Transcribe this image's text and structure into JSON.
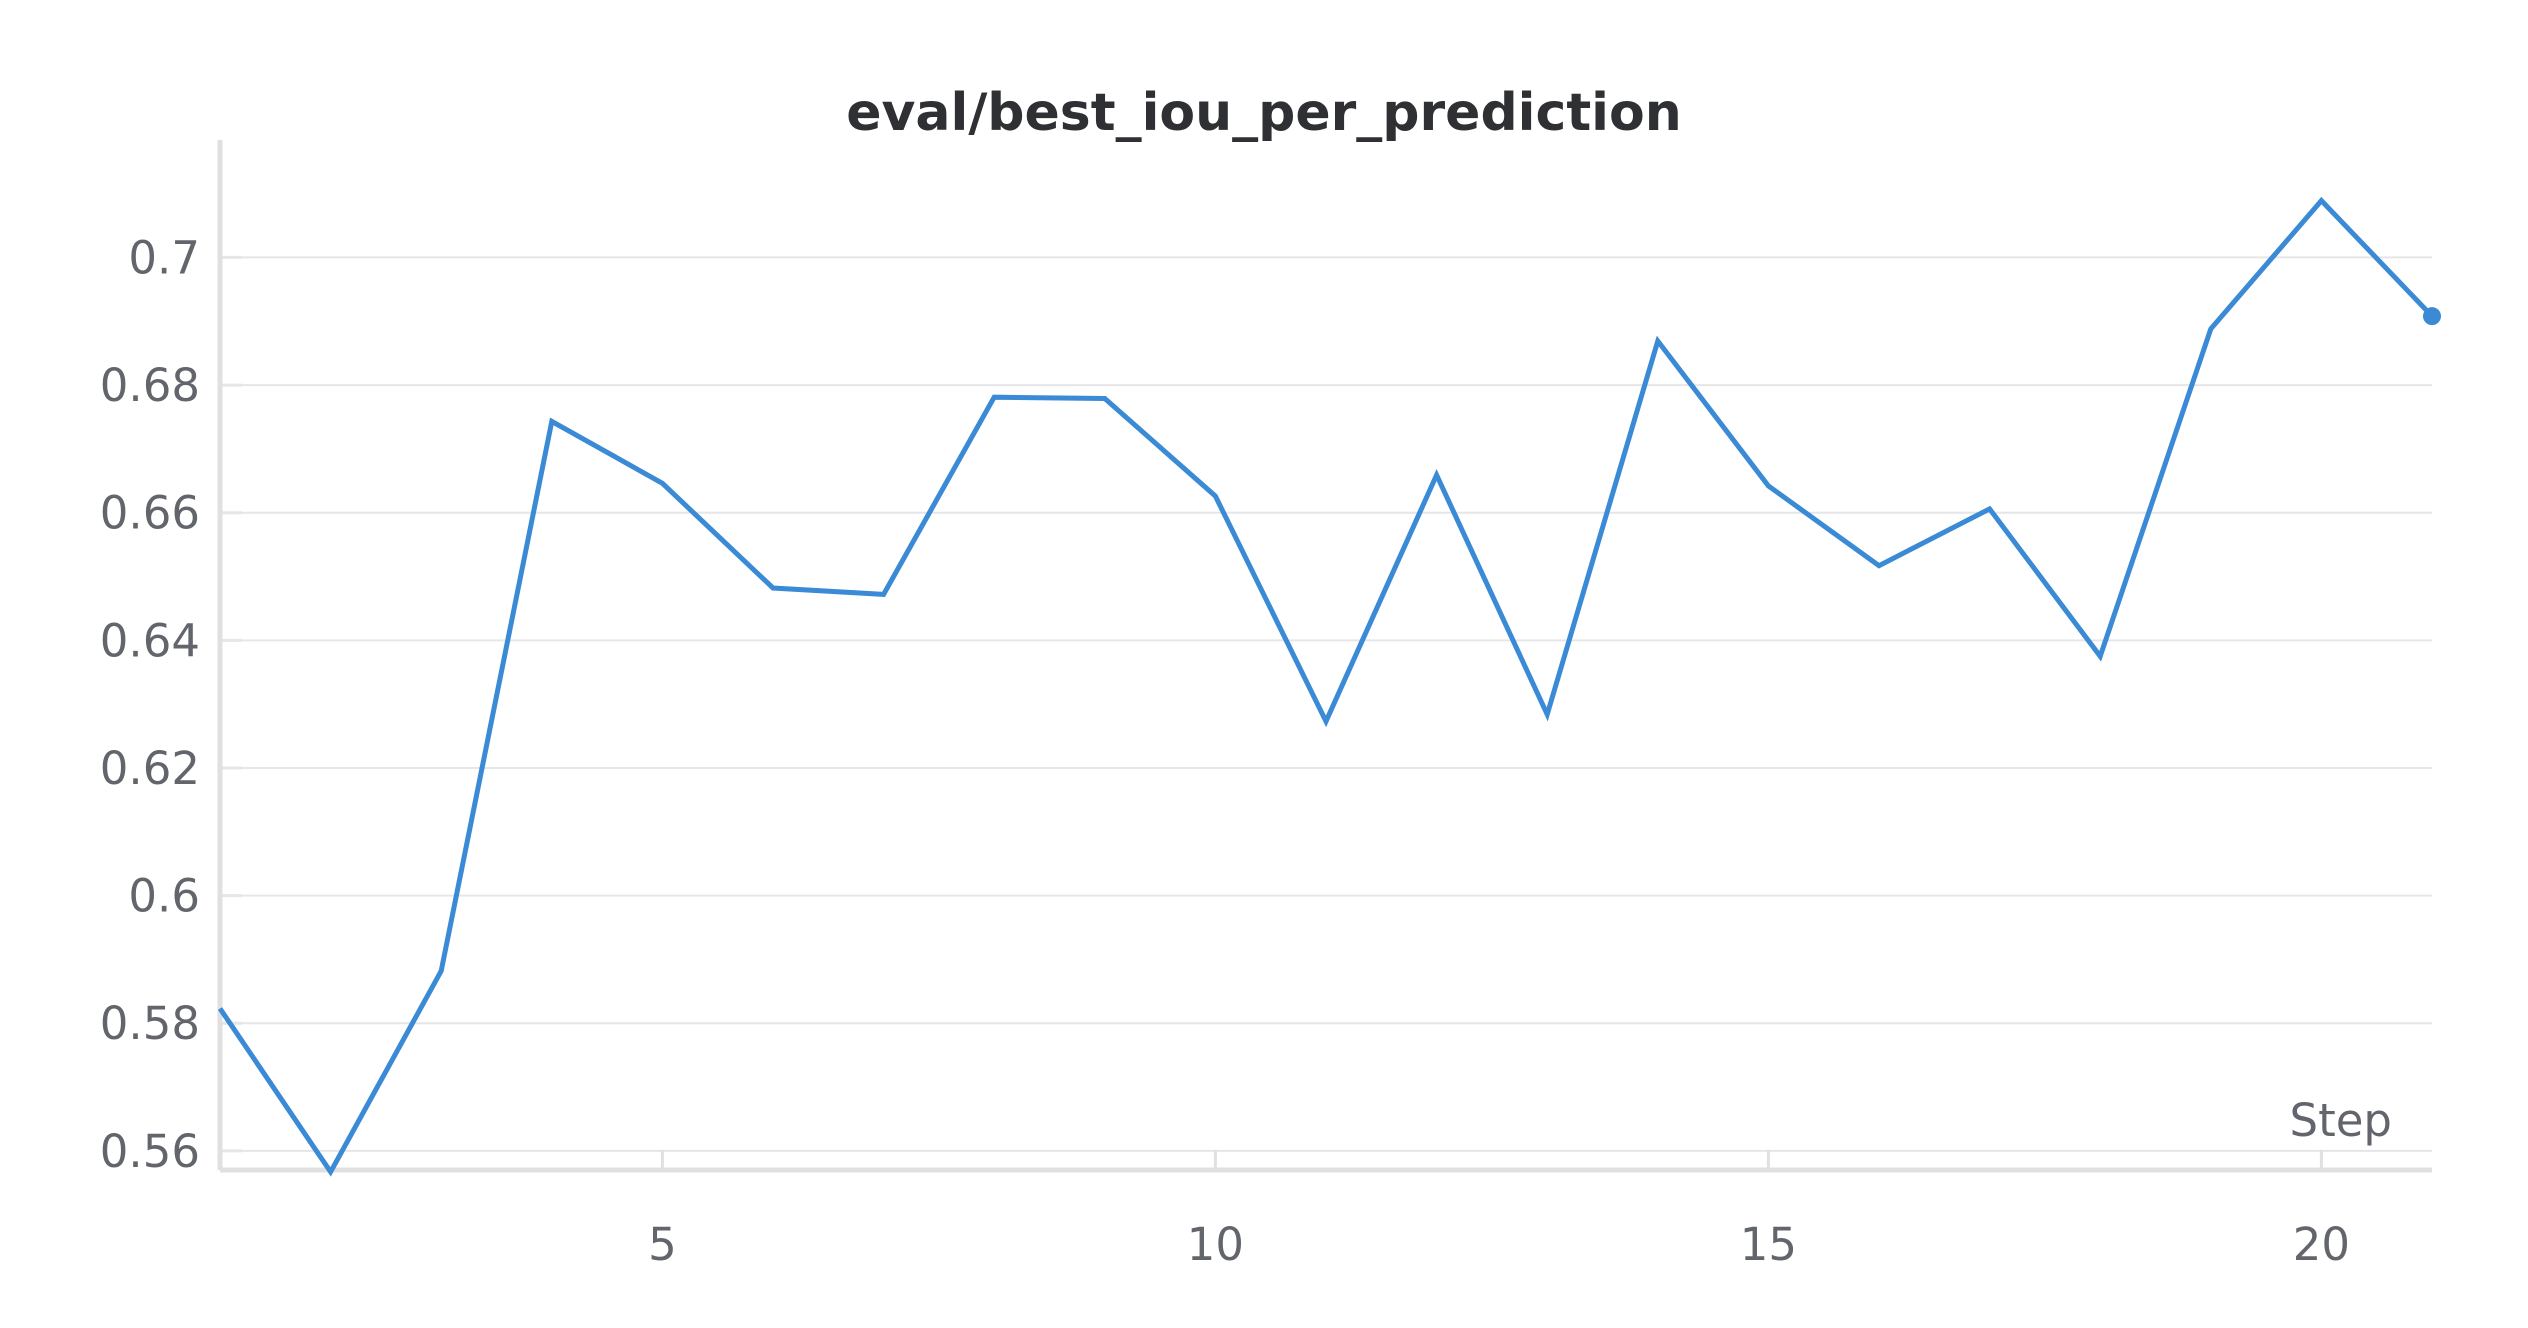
{
  "chart_data": {
    "type": "line",
    "title": "eval/best_iou_per_prediction",
    "xlabel": "Step",
    "ylabel": "",
    "xlim": [
      1,
      21
    ],
    "ylim": [
      0.557,
      0.709
    ],
    "x_ticks": [
      5,
      10,
      15,
      20
    ],
    "x_tick_labels": [
      "5",
      "10",
      "15",
      "20"
    ],
    "y_ticks": [
      0.56,
      0.58,
      0.6,
      0.62,
      0.64,
      0.66,
      0.68,
      0.7
    ],
    "y_tick_labels": [
      "0.56",
      "0.58",
      "0.6",
      "0.62",
      "0.64",
      "0.66",
      "0.68",
      "0.7"
    ],
    "grid": true,
    "legend": "none",
    "colors": {
      "line": "#3a8ad6",
      "grid": "#e6e6e8",
      "axis": "#e0e0e2",
      "text": "#62656b",
      "title": "#2f3033"
    },
    "series": [
      {
        "x": [
          1,
          2,
          3,
          4,
          5,
          6,
          7,
          8,
          9,
          10,
          11,
          12,
          13,
          14,
          15,
          16,
          17,
          18,
          19,
          20,
          21
        ],
        "values": [
          0.5823,
          0.5567,
          0.5882,
          0.6743,
          0.6646,
          0.6482,
          0.6472,
          0.6781,
          0.6779,
          0.6626,
          0.6273,
          0.6659,
          0.6284,
          0.6869,
          0.6642,
          0.6517,
          0.6606,
          0.6375,
          0.6888,
          0.7089,
          0.6908
        ]
      }
    ]
  }
}
